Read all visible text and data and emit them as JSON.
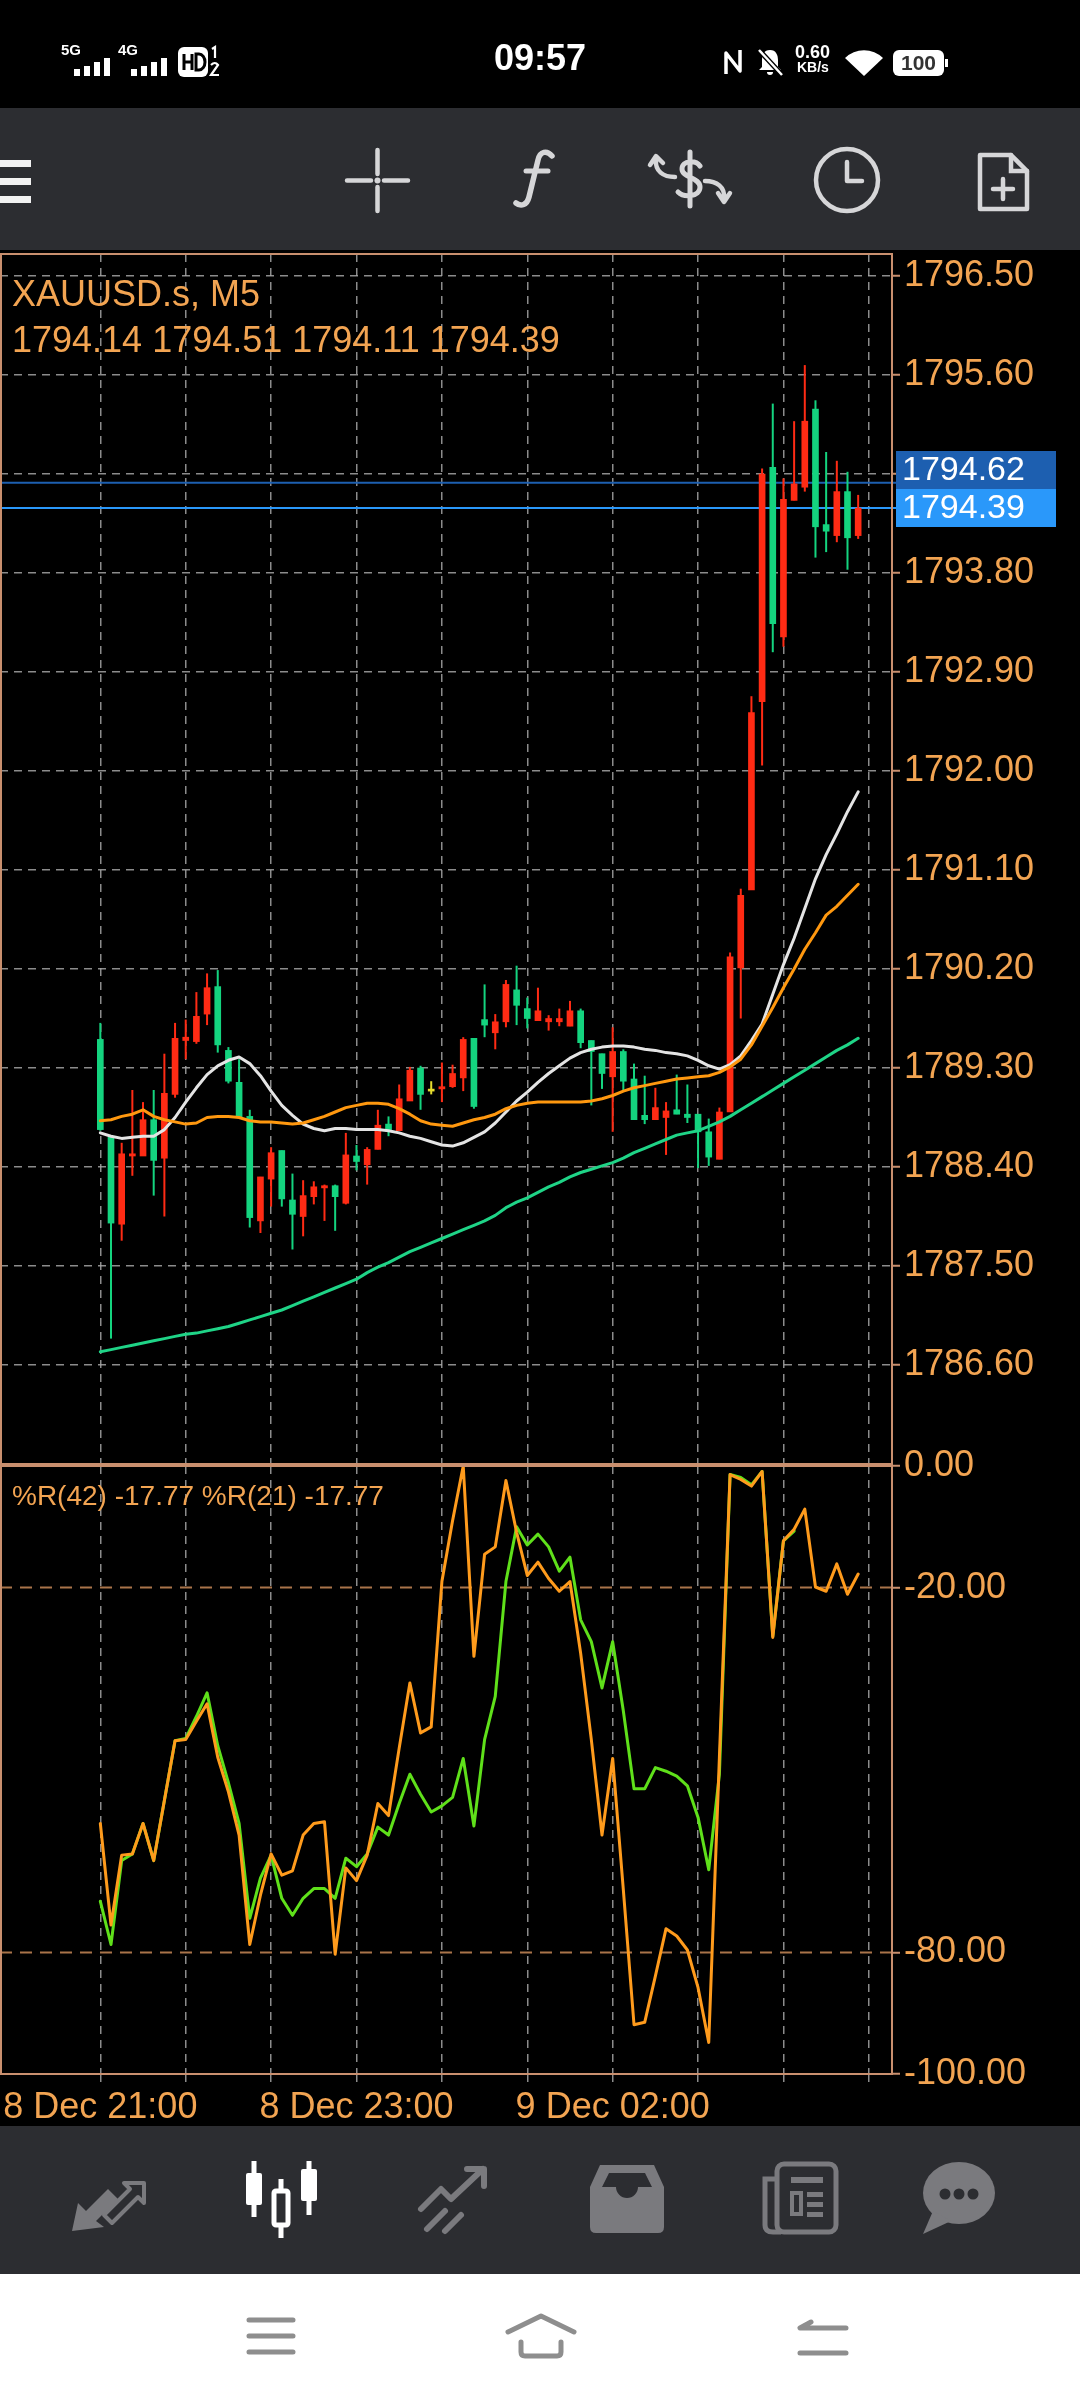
{
  "chart_data": [
    {
      "type": "candlestick",
      "title": "XAUUSD.s, M5",
      "subtitle": "1794.14 1794.51 1794.11 1794.39",
      "categories": [
        null,
        null,
        null,
        null,
        null,
        null,
        null,
        null,
        null,
        null,
        null,
        null,
        null,
        null,
        null,
        null,
        null,
        null,
        null,
        null,
        null,
        null,
        null,
        null,
        null,
        null,
        null,
        null,
        null,
        null,
        null,
        null,
        null,
        null,
        null,
        null,
        null,
        null,
        null,
        null,
        null,
        null,
        null,
        null,
        null,
        null,
        null,
        null,
        null,
        null,
        null,
        null,
        null,
        null,
        null,
        null,
        null,
        null,
        null,
        null,
        null,
        null,
        null,
        null,
        null,
        null,
        null,
        null,
        null,
        null,
        null,
        null
      ],
      "ohlc": [
        [
          1789.56,
          1789.71,
          1788.73,
          1788.74
        ],
        [
          1788.67,
          1788.68,
          1786.84,
          1787.89
        ],
        [
          1787.88,
          1788.62,
          1787.73,
          1788.52
        ],
        [
          1788.5,
          1789.1,
          1788.32,
          1788.52
        ],
        [
          1788.5,
          1788.99,
          1788.5,
          1788.83
        ],
        [
          1788.83,
          1789.1,
          1788.14,
          1788.46
        ],
        [
          1788.48,
          1789.43,
          1787.95,
          1789.07
        ],
        [
          1789.06,
          1789.71,
          1789.03,
          1789.57
        ],
        [
          1789.55,
          1789.74,
          1789.38,
          1789.58
        ],
        [
          1789.54,
          1789.99,
          1789.52,
          1789.77
        ],
        [
          1789.79,
          1790.16,
          1789.69,
          1790.03
        ],
        [
          1790.04,
          1790.19,
          1789.44,
          1789.51
        ],
        [
          1789.46,
          1789.49,
          1789.16,
          1789.18
        ],
        [
          1789.17,
          1789.38,
          1788.85,
          1788.85
        ],
        [
          1788.86,
          1788.92,
          1787.85,
          1787.94
        ],
        [
          1787.91,
          1788.31,
          1787.8,
          1788.31
        ],
        [
          1788.29,
          1788.58,
          1788.04,
          1788.53
        ],
        [
          1788.55,
          1788.55,
          1788.04,
          1788.11
        ],
        [
          1788.1,
          1788.34,
          1787.65,
          1787.97
        ],
        [
          1787.95,
          1788.28,
          1787.77,
          1788.14
        ],
        [
          1788.13,
          1788.27,
          1788.06,
          1788.22
        ],
        [
          1788.21,
          1788.24,
          1787.91,
          1788.23
        ],
        [
          1788.23,
          1788.24,
          1787.82,
          1788.13
        ],
        [
          1788.07,
          1788.71,
          1788.06,
          1788.51
        ],
        [
          1788.5,
          1788.6,
          1788.37,
          1788.45
        ],
        [
          1788.42,
          1788.58,
          1788.24,
          1788.56
        ],
        [
          1788.56,
          1788.92,
          1788.56,
          1788.78
        ],
        [
          1788.79,
          1788.86,
          1788.68,
          1788.74
        ],
        [
          1788.73,
          1789.15,
          1788.73,
          1789.02
        ],
        [
          1789.0,
          1789.31,
          1789.0,
          1789.28
        ],
        [
          1789.3,
          1789.32,
          1788.92,
          1789.06
        ],
        [
          1789.09,
          1789.18,
          1789.06,
          1789.09
        ],
        [
          1789.11,
          1789.35,
          1788.99,
          1789.13
        ],
        [
          1789.13,
          1789.33,
          1789.12,
          1789.25
        ],
        [
          1789.21,
          1789.58,
          1789.09,
          1789.56
        ],
        [
          1789.57,
          1789.57,
          1788.93,
          1788.95
        ],
        [
          1789.74,
          1790.06,
          1789.58,
          1789.69
        ],
        [
          1789.62,
          1789.79,
          1789.47,
          1789.72
        ],
        [
          1789.72,
          1790.1,
          1789.67,
          1790.06
        ],
        [
          1790.01,
          1790.23,
          1789.69,
          1789.87
        ],
        [
          1789.84,
          1789.94,
          1789.66,
          1789.75
        ],
        [
          1789.73,
          1790.03,
          1789.73,
          1789.82
        ],
        [
          1789.72,
          1789.78,
          1789.64,
          1789.75
        ],
        [
          1789.72,
          1789.84,
          1789.68,
          1789.75
        ],
        [
          1789.68,
          1789.91,
          1789.68,
          1789.82
        ],
        [
          1789.82,
          1789.84,
          1789.48,
          1789.53
        ],
        [
          1789.55,
          1789.55,
          1788.96,
          1789.45
        ],
        [
          1789.43,
          1789.43,
          1789.11,
          1789.25
        ],
        [
          1789.22,
          1789.67,
          1788.72,
          1789.45
        ],
        [
          1789.45,
          1789.47,
          1789.09,
          1789.18
        ],
        [
          1789.2,
          1789.34,
          1788.83,
          1788.83
        ],
        [
          1788.87,
          1789.23,
          1788.79,
          1788.83
        ],
        [
          1788.83,
          1789.12,
          1788.83,
          1788.94
        ],
        [
          1788.85,
          1788.99,
          1788.51,
          1788.91
        ],
        [
          1788.92,
          1789.24,
          1788.88,
          1788.88
        ],
        [
          1788.88,
          1789.15,
          1788.8,
          1788.85
        ],
        [
          1788.88,
          1788.88,
          1788.39,
          1788.72
        ],
        [
          1788.72,
          1788.84,
          1788.41,
          1788.49
        ],
        [
          1788.47,
          1788.94,
          1788.47,
          1788.9
        ],
        [
          1788.9,
          1790.35,
          1788.9,
          1790.31
        ],
        [
          1790.21,
          1790.93,
          1789.75,
          1790.87
        ],
        [
          1790.92,
          1792.68,
          1790.92,
          1792.53
        ],
        [
          1792.63,
          1794.75,
          1792.05,
          1794.7
        ],
        [
          1794.76,
          1795.34,
          1793.08,
          1793.34
        ],
        [
          1793.22,
          1794.66,
          1793.13,
          1794.47
        ],
        [
          1794.46,
          1795.18,
          1794.46,
          1794.61
        ],
        [
          1794.58,
          1795.69,
          1794.54,
          1795.18
        ],
        [
          1795.29,
          1795.37,
          1793.94,
          1794.22
        ],
        [
          1794.24,
          1794.9,
          1793.99,
          1794.18
        ],
        [
          1794.14,
          1794.82,
          1794.08,
          1794.54
        ],
        [
          1794.54,
          1794.72,
          1793.83,
          1794.12
        ],
        [
          1794.14,
          1794.51,
          1794.11,
          1794.39
        ]
      ],
      "colors": [
        "#14d47f",
        "#14d47f",
        "#ff2b14",
        "#ff2b14",
        "#ff2b14",
        "#14d47f",
        "#ff2b14",
        "#ff2b14",
        "#ff2b14",
        "#ff2b14",
        "#ff2b14",
        "#14d47f",
        "#14d47f",
        "#14d47f",
        "#14d47f",
        "#ff2b14",
        "#ff2b14",
        "#14d47f",
        "#14d47f",
        "#ff2b14",
        "#ff2b14",
        "#ff2b14",
        "#14d47f",
        "#ff2b14",
        "#14d47f",
        "#ff2b14",
        "#ff2b14",
        "#14d47f",
        "#ff2b14",
        "#ff2b14",
        "#14d47f",
        "#e6dc2e",
        "#ff2b14",
        "#ff2b14",
        "#ff2b14",
        "#14d47f",
        "#14d47f",
        "#ff2b14",
        "#ff2b14",
        "#14d47f",
        "#14d47f",
        "#ff2b14",
        "#ff2b14",
        "#ff2b14",
        "#ff2b14",
        "#14d47f",
        "#14d47f",
        "#14d47f",
        "#ff2b14",
        "#14d47f",
        "#14d47f",
        "#14d47f",
        "#ff2b14",
        "#ff2b14",
        "#14d47f",
        "#14d47f",
        "#14d47f",
        "#14d47f",
        "#ff2b14",
        "#ff2b14",
        "#ff2b14",
        "#ff2b14",
        "#ff2b14",
        "#14d47f",
        "#ff2b14",
        "#ff2b14",
        "#ff2b14",
        "#14d47f",
        "#14d47f",
        "#ff2b14",
        "#14d47f",
        "#ff2b14"
      ],
      "series": [
        {
          "type": "line",
          "color": "#e4e4e4",
          "values": [
            1788.71,
            1788.68,
            1788.66,
            1788.67,
            1788.68,
            1788.68,
            1788.74,
            1788.85,
            1788.99,
            1789.12,
            1789.24,
            1789.32,
            1789.37,
            1789.4,
            1789.34,
            1789.23,
            1789.09,
            1788.96,
            1788.87,
            1788.79,
            1788.75,
            1788.73,
            1788.75,
            1788.75,
            1788.74,
            1788.74,
            1788.74,
            1788.73,
            1788.71,
            1788.68,
            1788.66,
            1788.63,
            1788.6,
            1788.59,
            1788.62,
            1788.67,
            1788.72,
            1788.8,
            1788.9,
            1789.0,
            1789.08,
            1789.17,
            1789.25,
            1789.32,
            1789.39,
            1789.44,
            1789.47,
            1789.49,
            1789.5,
            1789.5,
            1789.49,
            1789.47,
            1789.46,
            1789.44,
            1789.43,
            1789.41,
            1789.37,
            1789.32,
            1789.29,
            1789.33,
            1789.41,
            1789.55,
            1789.7,
            1789.97,
            1790.24,
            1790.48,
            1790.75,
            1791.02,
            1791.24,
            1791.43,
            1791.63,
            1791.81
          ]
        },
        {
          "type": "line",
          "color": "#ff980f",
          "values": [
            1788.82,
            1788.83,
            1788.86,
            1788.88,
            1788.92,
            1788.86,
            1788.83,
            1788.81,
            1788.79,
            1788.8,
            1788.85,
            1788.86,
            1788.86,
            1788.85,
            1788.82,
            1788.81,
            1788.81,
            1788.8,
            1788.79,
            1788.8,
            1788.83,
            1788.86,
            1788.9,
            1788.94,
            1788.96,
            1788.98,
            1788.98,
            1788.97,
            1788.93,
            1788.88,
            1788.82,
            1788.79,
            1788.78,
            1788.77,
            1788.8,
            1788.83,
            1788.85,
            1788.88,
            1788.93,
            1788.96,
            1788.98,
            1788.99,
            1788.99,
            1788.99,
            1788.99,
            1788.99,
            1789.0,
            1789.02,
            1789.05,
            1789.09,
            1789.12,
            1789.14,
            1789.16,
            1789.18,
            1789.2,
            1789.21,
            1789.22,
            1789.23,
            1789.26,
            1789.31,
            1789.38,
            1789.51,
            1789.68,
            1789.85,
            1790.03,
            1790.2,
            1790.38,
            1790.53,
            1790.69,
            1790.77,
            1790.87,
            1790.97
          ]
        },
        {
          "type": "line",
          "color": "#1fd487",
          "values": [
            1786.72,
            1786.74,
            1786.76,
            1786.78,
            1786.8,
            1786.82,
            1786.84,
            1786.86,
            1786.88,
            1786.89,
            1786.91,
            1786.93,
            1786.95,
            1786.98,
            1787.01,
            1787.04,
            1787.07,
            1787.1,
            1787.14,
            1787.18,
            1787.22,
            1787.26,
            1787.3,
            1787.34,
            1787.38,
            1787.44,
            1787.49,
            1787.53,
            1787.58,
            1787.63,
            1787.67,
            1787.71,
            1787.75,
            1787.79,
            1787.83,
            1787.87,
            1787.91,
            1787.96,
            1788.03,
            1788.08,
            1788.12,
            1788.17,
            1788.22,
            1788.26,
            1788.31,
            1788.35,
            1788.38,
            1788.41,
            1788.44,
            1788.48,
            1788.53,
            1788.57,
            1788.61,
            1788.65,
            1788.69,
            1788.71,
            1788.73,
            1788.77,
            1788.81,
            1788.86,
            1788.92,
            1788.98,
            1789.04,
            1789.1,
            1789.16,
            1789.22,
            1789.28,
            1789.34,
            1789.4,
            1789.46,
            1789.51,
            1789.57
          ]
        }
      ],
      "ylim": [
        1785.7,
        1796.7
      ],
      "yticks": [
        {
          "value": 1786.6,
          "label": "1786.60"
        },
        {
          "value": 1787.5,
          "label": "1787.50"
        },
        {
          "value": 1788.4,
          "label": "1788.40"
        },
        {
          "value": 1789.3,
          "label": "1789.30"
        },
        {
          "value": 1790.2,
          "label": "1790.20"
        },
        {
          "value": 1791.1,
          "label": "1791.10"
        },
        {
          "value": 1792,
          "label": "1792.00"
        },
        {
          "value": 1792.9,
          "label": "1792.90"
        },
        {
          "value": 1793.8,
          "label": "1793.80"
        },
        {
          "value": 1794.7,
          "label": null
        },
        {
          "value": 1795.6,
          "label": "1795.60"
        },
        {
          "value": 1796.5,
          "label": "1796.50"
        }
      ],
      "ref_lines": [
        {
          "axis": "y",
          "value": 1794.62,
          "label": "1794.62",
          "color": "#1d5fb0"
        },
        {
          "axis": "y",
          "value": 1794.39,
          "label": "1794.39",
          "color": "#2a98fa"
        }
      ],
      "grid": true,
      "tick_labels": "y",
      "annotations": [
        "5G",
        "4G",
        "09:57",
        "0.60",
        "KB/s",
        "100"
      ]
    },
    {
      "type": "line",
      "title": "%R(42) -17.77 %R(21) -17.77",
      "categories": [
        "8 Dec 21:00",
        null,
        null,
        null,
        null,
        null,
        null,
        null,
        null,
        null,
        null,
        null,
        null,
        null,
        null,
        null,
        null,
        null,
        null,
        null,
        null,
        null,
        null,
        null,
        "8 Dec 23:00",
        null,
        null,
        null,
        null,
        null,
        null,
        null,
        null,
        null,
        null,
        null,
        null,
        null,
        null,
        null,
        null,
        null,
        null,
        null,
        null,
        null,
        null,
        null,
        "9 Dec 02:00",
        null,
        null,
        null,
        null,
        null,
        null,
        null,
        null,
        null,
        null,
        null,
        null,
        null,
        null,
        null,
        null,
        null,
        null,
        null,
        null,
        null,
        null,
        null
      ],
      "series": [
        {
          "color": "#5fe01a",
          "values": [
            -71.6,
            -78.7,
            -64.9,
            -63.8,
            -58.8,
            -64.9,
            -55.0,
            -45.2,
            -44.8,
            -41.2,
            -37.3,
            -46.0,
            -52.1,
            -58.8,
            -74.4,
            -67.8,
            -64.0,
            -71.1,
            -73.9,
            -71.1,
            -69.5,
            -69.5,
            -71.1,
            -64.5,
            -65.9,
            -63.8,
            -59.4,
            -60.7,
            -55.5,
            -50.7,
            -54.0,
            -56.9,
            -55.9,
            -54.5,
            -48.1,
            -59.2,
            -45.0,
            -37.9,
            -19.0,
            -10.0,
            -13.0,
            -11.2,
            -13.3,
            -17.3,
            -15.0,
            -25.3,
            -28.9,
            -36.5,
            -28.9,
            -40.3,
            -53.1,
            -53.1,
            -49.6,
            -50.2,
            -51.0,
            -52.6,
            -57.8,
            -66.4,
            -50.7,
            -1.4,
            -1.9,
            -3.1,
            -0.9,
            -28.0,
            -12.3,
            -10.7,
            null,
            null,
            null,
            null,
            null,
            null
          ]
        },
        {
          "color": "#ff9b1c",
          "values": [
            -58.8,
            -75.5,
            -64.0,
            -63.8,
            -58.8,
            -64.9,
            -55.0,
            -45.2,
            -45.0,
            -42.0,
            -39.1,
            -47.9,
            -53.6,
            -60.7,
            -78.7,
            -70.6,
            -63.8,
            -67.3,
            -66.6,
            -60.7,
            -58.8,
            -58.5,
            -80.3,
            -66.1,
            -68.2,
            -64.0,
            -55.5,
            -57.5,
            -46.4,
            -35.7,
            -43.9,
            -42.9,
            -19.0,
            -9.0,
            0,
            -31.3,
            -14.5,
            -13.3,
            -2.4,
            -10.9,
            -18.0,
            -15.8,
            -18.5,
            -20.6,
            -19.0,
            -30.8,
            -45.0,
            -60.7,
            -48.1,
            -69.7,
            -91.9,
            -91.5,
            -83.9,
            -76.1,
            -77.3,
            -79.6,
            -85.8,
            -94.8,
            -47.9,
            -1.4,
            -2.2,
            -3.3,
            -0.9,
            -28.2,
            -12.3,
            -10.4,
            -7.1,
            -19.9,
            -20.6,
            -16.1,
            -21.1,
            -17.77
          ]
        }
      ],
      "ylim": [
        -100,
        0
      ],
      "yticks": [
        {
          "value": 0,
          "label": "0.00"
        },
        {
          "value": -20,
          "label": "-20.00"
        },
        {
          "value": -80,
          "label": "-80.00"
        },
        {
          "value": -100,
          "label": "-100.00"
        }
      ],
      "ref_lines": [
        {
          "axis": "y",
          "value": -20,
          "color": "#a9744a",
          "line_style": "dashed"
        },
        {
          "axis": "y",
          "value": -80,
          "color": "#a9744a",
          "line_style": "dashed"
        }
      ],
      "grid": "x"
    }
  ]
}
